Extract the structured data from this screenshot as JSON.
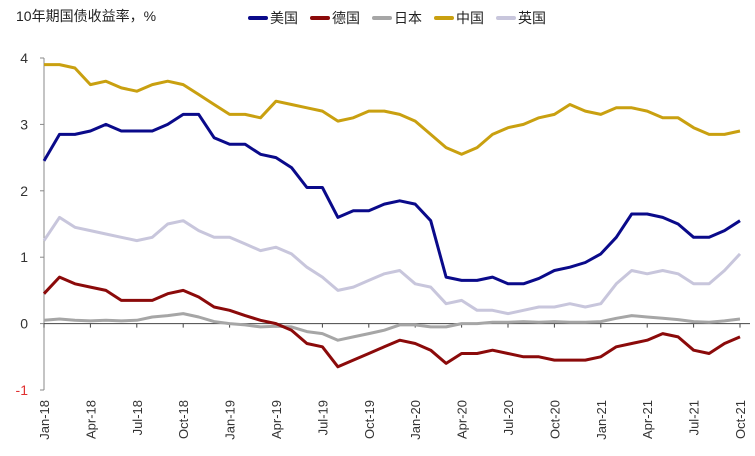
{
  "chart_data": {
    "type": "line",
    "title": "10年期国债收益率，%",
    "xlabel": "",
    "ylabel": "",
    "ylim": [
      -1,
      4
    ],
    "yticks": [
      "4",
      "3",
      "2",
      "1",
      "0",
      "-1"
    ],
    "xticks": [
      "Jan-18",
      "Apr-18",
      "Jul-18",
      "Oct-18",
      "Jan-19",
      "Apr-19",
      "Jul-19",
      "Oct-19",
      "Jan-20",
      "Apr-20",
      "Jul-20",
      "Oct-20",
      "Jan-21",
      "Apr-21",
      "Jul-21",
      "Oct-21"
    ],
    "x_start": "2018-01",
    "x_end": "2021-10",
    "grid": false,
    "legend_position": "top",
    "negative_tick_color": "#e03030",
    "series": [
      {
        "name": "美国",
        "color": "#0a0a8a",
        "values": [
          2.45,
          2.85,
          2.85,
          2.9,
          3.0,
          2.9,
          2.9,
          2.9,
          3.0,
          3.15,
          3.15,
          2.8,
          2.7,
          2.7,
          2.55,
          2.5,
          2.35,
          2.05,
          2.05,
          1.6,
          1.7,
          1.7,
          1.8,
          1.85,
          1.8,
          1.55,
          0.7,
          0.65,
          0.65,
          0.7,
          0.6,
          0.6,
          0.68,
          0.8,
          0.85,
          0.92,
          1.05,
          1.3,
          1.65,
          1.65,
          1.6,
          1.5,
          1.3,
          1.3,
          1.4,
          1.55
        ]
      },
      {
        "name": "德国",
        "color": "#8b0a0a",
        "values": [
          0.45,
          0.7,
          0.6,
          0.55,
          0.5,
          0.35,
          0.35,
          0.35,
          0.45,
          0.5,
          0.4,
          0.25,
          0.2,
          0.12,
          0.05,
          0.0,
          -0.1,
          -0.3,
          -0.35,
          -0.65,
          -0.55,
          -0.45,
          -0.35,
          -0.25,
          -0.3,
          -0.4,
          -0.6,
          -0.45,
          -0.45,
          -0.4,
          -0.45,
          -0.5,
          -0.5,
          -0.55,
          -0.55,
          -0.55,
          -0.5,
          -0.35,
          -0.3,
          -0.25,
          -0.15,
          -0.2,
          -0.4,
          -0.45,
          -0.3,
          -0.2
        ]
      },
      {
        "name": "日本",
        "color": "#a6a6a6",
        "values": [
          0.05,
          0.07,
          0.05,
          0.04,
          0.05,
          0.04,
          0.05,
          0.1,
          0.12,
          0.15,
          0.1,
          0.03,
          0.0,
          -0.02,
          -0.05,
          -0.04,
          -0.05,
          -0.12,
          -0.15,
          -0.25,
          -0.2,
          -0.15,
          -0.1,
          -0.02,
          -0.02,
          -0.05,
          -0.05,
          0.0,
          0.0,
          0.02,
          0.02,
          0.03,
          0.02,
          0.03,
          0.02,
          0.02,
          0.03,
          0.08,
          0.12,
          0.1,
          0.08,
          0.06,
          0.03,
          0.02,
          0.04,
          0.07
        ]
      },
      {
        "name": "中国",
        "color": "#c9a010",
        "values": [
          3.9,
          3.9,
          3.85,
          3.6,
          3.65,
          3.55,
          3.5,
          3.6,
          3.65,
          3.6,
          3.45,
          3.3,
          3.15,
          3.15,
          3.1,
          3.35,
          3.3,
          3.25,
          3.2,
          3.05,
          3.1,
          3.2,
          3.2,
          3.15,
          3.05,
          2.85,
          2.65,
          2.55,
          2.65,
          2.85,
          2.95,
          3.0,
          3.1,
          3.15,
          3.3,
          3.2,
          3.15,
          3.25,
          3.25,
          3.2,
          3.1,
          3.1,
          2.95,
          2.85,
          2.85,
          2.9
        ]
      },
      {
        "name": "英国",
        "color": "#c8c6dc",
        "values": [
          1.25,
          1.6,
          1.45,
          1.4,
          1.35,
          1.3,
          1.25,
          1.3,
          1.5,
          1.55,
          1.4,
          1.3,
          1.3,
          1.2,
          1.1,
          1.15,
          1.05,
          0.85,
          0.7,
          0.5,
          0.55,
          0.65,
          0.75,
          0.8,
          0.6,
          0.55,
          0.3,
          0.35,
          0.2,
          0.2,
          0.15,
          0.2,
          0.25,
          0.25,
          0.3,
          0.25,
          0.3,
          0.6,
          0.8,
          0.75,
          0.8,
          0.75,
          0.6,
          0.6,
          0.8,
          1.05
        ]
      }
    ]
  }
}
